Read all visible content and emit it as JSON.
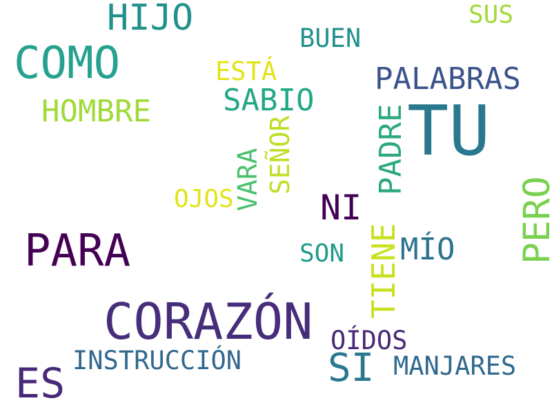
{
  "words": {
    "tu": {
      "text": "TU",
      "color": "#2a788e"
    },
    "corazon": {
      "text": "CORAZÓN",
      "color": "#472d7b"
    },
    "para": {
      "text": "PARA",
      "color": "#440154"
    },
    "como": {
      "text": "COMO",
      "color": "#25a18e"
    },
    "hijo": {
      "text": "HIJO",
      "color": "#21918c"
    },
    "es": {
      "text": "ES",
      "color": "#482878"
    },
    "si": {
      "text": "SI",
      "color": "#2a788e"
    },
    "ni": {
      "text": "NI",
      "color": "#440154"
    },
    "palabras": {
      "text": "PALABRAS",
      "color": "#3b528b"
    },
    "sabio": {
      "text": "SABIO",
      "color": "#22a884"
    },
    "hombre": {
      "text": "HOMBRE",
      "color": "#a0da39"
    },
    "padre": {
      "text": "PADRE",
      "color": "#2ba87f"
    },
    "pero": {
      "text": "PERO",
      "color": "#7ad151"
    },
    "mio": {
      "text": "MÍO",
      "color": "#2c728e"
    },
    "tiene": {
      "text": "TIENE",
      "color": "#c8e020"
    },
    "instruccion": {
      "text": "INSTRUCCIÓN",
      "color": "#31688e"
    },
    "manjares": {
      "text": "MANJARES",
      "color": "#31688e"
    },
    "oidos": {
      "text": "OÍDOS",
      "color": "#482878"
    },
    "buen": {
      "text": "BUEN",
      "color": "#21918c"
    },
    "esta": {
      "text": "ESTÁ",
      "color": "#e2e418"
    },
    "sus": {
      "text": "SUS",
      "color": "#a0da39"
    },
    "senor": {
      "text": "SEÑOR",
      "color": "#bddf26"
    },
    "vara": {
      "text": "VARA",
      "color": "#4ac16d"
    },
    "ojos": {
      "text": "OJOS",
      "color": "#e2e418"
    },
    "son": {
      "text": "SON",
      "color": "#1f9a8a"
    }
  }
}
